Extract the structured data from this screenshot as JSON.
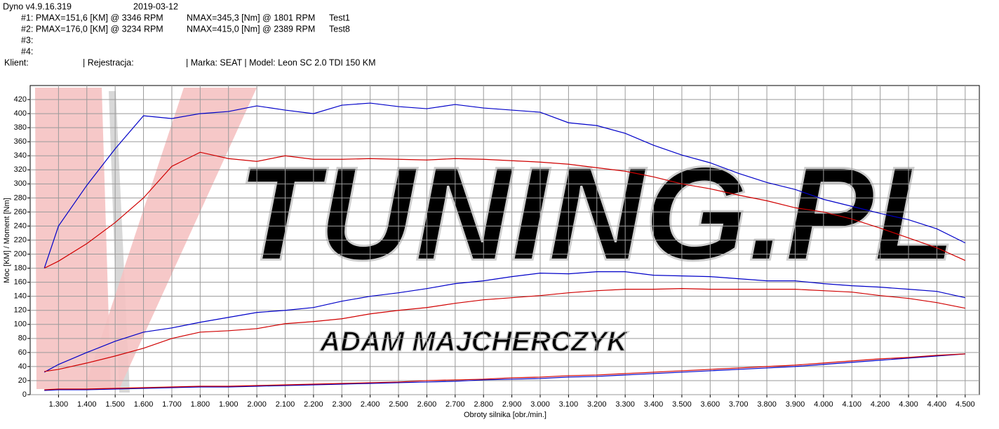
{
  "header": {
    "version": "Dyno v4.9.16.319",
    "date": "2019-03-12",
    "runs": [
      {
        "label": "#1: PMAX=151,6 [KM] @ 3346 RPM",
        "torque": "NMAX=345,3 [Nm] @ 1801 RPM",
        "test": "Test1"
      },
      {
        "label": "#2: PMAX=176,0 [KM] @ 3234 RPM",
        "torque": "NMAX=415,0 [Nm] @ 2389 RPM",
        "test": "Test8"
      },
      {
        "label": "#3:"
      },
      {
        "label": "#4:"
      }
    ],
    "client": "Klient:",
    "registration": "| Rejestracja:",
    "vehicle": "| Marka: SEAT | Model: Leon SC 2.0 TDI 150 KM"
  },
  "watermark": {
    "brand": "TUNING.PL",
    "owner": "ADAM MAJCHERCZYK"
  },
  "chart_data": {
    "type": "line",
    "x_label": "Obroty silnika [obr./min.]",
    "y_label": "Moc [KM] / Moment [Nm]",
    "xlim": [
      1200,
      4550
    ],
    "ylim": [
      0,
      440
    ],
    "grid": true,
    "xticks": [
      {
        "value": 1300,
        "label": "1.300"
      },
      {
        "value": 1400,
        "label": "1.400"
      },
      {
        "value": 1500,
        "label": "1.500"
      },
      {
        "value": 1600,
        "label": "1.600"
      },
      {
        "value": 1700,
        "label": "1.700"
      },
      {
        "value": 1800,
        "label": "1.800"
      },
      {
        "value": 1900,
        "label": "1.900"
      },
      {
        "value": 2000,
        "label": "2.000"
      },
      {
        "value": 2100,
        "label": "2.100"
      },
      {
        "value": 2200,
        "label": "2.200"
      },
      {
        "value": 2300,
        "label": "2.300"
      },
      {
        "value": 2400,
        "label": "2.400"
      },
      {
        "value": 2500,
        "label": "2.500"
      },
      {
        "value": 2600,
        "label": "2.600"
      },
      {
        "value": 2700,
        "label": "2.700"
      },
      {
        "value": 2800,
        "label": "2.800"
      },
      {
        "value": 2900,
        "label": "2.900"
      },
      {
        "value": 3000,
        "label": "3.000"
      },
      {
        "value": 3100,
        "label": "3.100"
      },
      {
        "value": 3200,
        "label": "3.200"
      },
      {
        "value": 3300,
        "label": "3.300"
      },
      {
        "value": 3400,
        "label": "3.400"
      },
      {
        "value": 3500,
        "label": "3.500"
      },
      {
        "value": 3600,
        "label": "3.600"
      },
      {
        "value": 3700,
        "label": "3.700"
      },
      {
        "value": 3800,
        "label": "3.800"
      },
      {
        "value": 3900,
        "label": "3.900"
      },
      {
        "value": 4000,
        "label": "4.000"
      },
      {
        "value": 4100,
        "label": "4.100"
      },
      {
        "value": 4200,
        "label": "4.200"
      },
      {
        "value": 4300,
        "label": "4.300"
      },
      {
        "value": 4400,
        "label": "4.400"
      },
      {
        "value": 4500,
        "label": "4.500"
      }
    ],
    "yticks": [
      0,
      20,
      40,
      60,
      80,
      100,
      120,
      140,
      160,
      180,
      200,
      220,
      240,
      260,
      280,
      300,
      320,
      340,
      360,
      380,
      400,
      420
    ],
    "x": [
      1250,
      1300,
      1400,
      1500,
      1600,
      1700,
      1800,
      1900,
      2000,
      2100,
      2200,
      2300,
      2400,
      2500,
      2600,
      2700,
      2800,
      2900,
      3000,
      3100,
      3200,
      3300,
      3400,
      3500,
      3600,
      3700,
      3800,
      3900,
      4000,
      4100,
      4200,
      4300,
      4400,
      4500
    ],
    "series": [
      {
        "color": "#0000c8",
        "values": [
          180,
          240,
          298,
          350,
          397,
          393,
          400,
          403,
          411,
          405,
          400,
          412,
          415,
          410,
          407,
          413,
          408,
          405,
          402,
          387,
          383,
          372,
          355,
          341,
          330,
          315,
          302,
          292,
          278,
          268,
          258,
          249,
          236,
          216
        ]
      },
      {
        "color": "#d00000",
        "values": [
          180,
          190,
          215,
          245,
          280,
          325,
          345,
          336,
          332,
          340,
          335,
          335,
          336,
          335,
          334,
          336,
          335,
          333,
          331,
          328,
          323,
          318,
          310,
          300,
          293,
          284,
          276,
          266,
          260,
          250,
          237,
          223,
          209,
          191
        ]
      },
      {
        "color": "#0000c8",
        "values": [
          32,
          43,
          60,
          76,
          89,
          95,
          103,
          110,
          117,
          120,
          124,
          133,
          140,
          145,
          151,
          158,
          162,
          168,
          173,
          172,
          175,
          175,
          170,
          169,
          168,
          165,
          162,
          162,
          158,
          155,
          153,
          150,
          147,
          138
        ]
      },
      {
        "color": "#d00000",
        "values": [
          33,
          36,
          45,
          55,
          66,
          80,
          89,
          91,
          94,
          101,
          104,
          108,
          115,
          120,
          124,
          130,
          135,
          138,
          141,
          145,
          148,
          150,
          150,
          151,
          150,
          150,
          150,
          150,
          148,
          146,
          141,
          137,
          131,
          123
        ]
      },
      {
        "color": "#0000c8",
        "values": [
          6,
          7,
          7,
          8,
          9,
          10,
          11,
          11,
          12,
          13,
          14,
          15,
          16,
          17,
          18,
          19,
          21,
          22,
          23,
          25,
          26,
          28,
          30,
          32,
          34,
          36,
          38,
          40,
          43,
          46,
          49,
          52,
          55,
          58
        ]
      },
      {
        "color": "#d00000",
        "values": [
          7,
          8,
          8,
          9,
          10,
          11,
          12,
          12,
          13,
          14,
          15,
          16,
          17,
          18,
          20,
          21,
          22,
          24,
          25,
          27,
          28,
          30,
          32,
          34,
          36,
          38,
          40,
          42,
          45,
          48,
          51,
          53,
          56,
          58
        ]
      }
    ]
  }
}
